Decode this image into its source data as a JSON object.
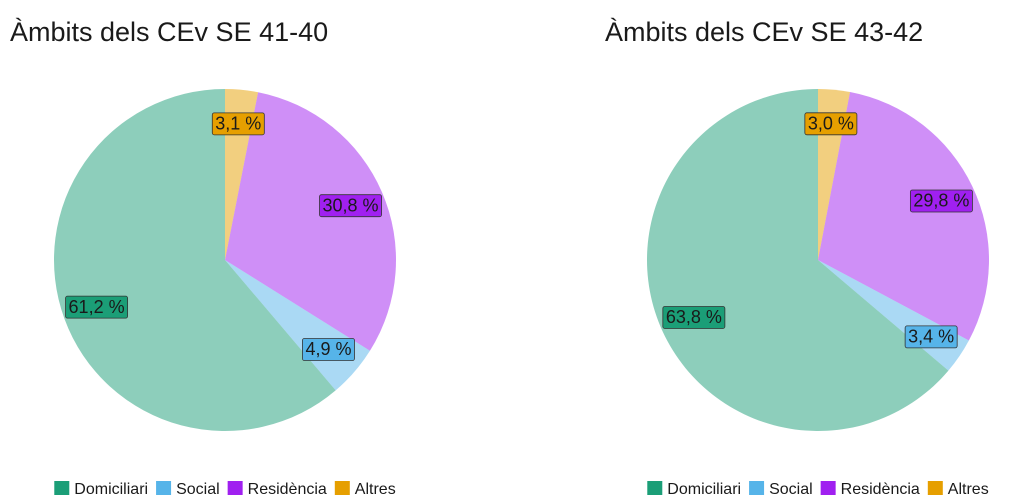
{
  "chart_data": [
    {
      "type": "pie",
      "title": "Àmbits dels CEv SE 41-40",
      "categories": [
        "Domiciliari",
        "Social",
        "Residència",
        "Altres"
      ],
      "values": [
        61.2,
        4.9,
        30.8,
        3.1
      ],
      "value_labels": [
        "61,2 %",
        "4,9 %",
        "30,8 %",
        "3,1 %"
      ],
      "colors": [
        "#1b9e77",
        "#56b4e9",
        "#a020f0",
        "#e69f00"
      ]
    },
    {
      "type": "pie",
      "title": "Àmbits dels CEv SE 43-42",
      "categories": [
        "Domiciliari",
        "Social",
        "Residència",
        "Altres"
      ],
      "values": [
        63.8,
        3.4,
        29.8,
        3.0
      ],
      "value_labels": [
        "63,8 %",
        "3,4 %",
        "29,8 %",
        "3,0 %"
      ],
      "colors": [
        "#1b9e77",
        "#56b4e9",
        "#a020f0",
        "#e69f00"
      ]
    }
  ]
}
